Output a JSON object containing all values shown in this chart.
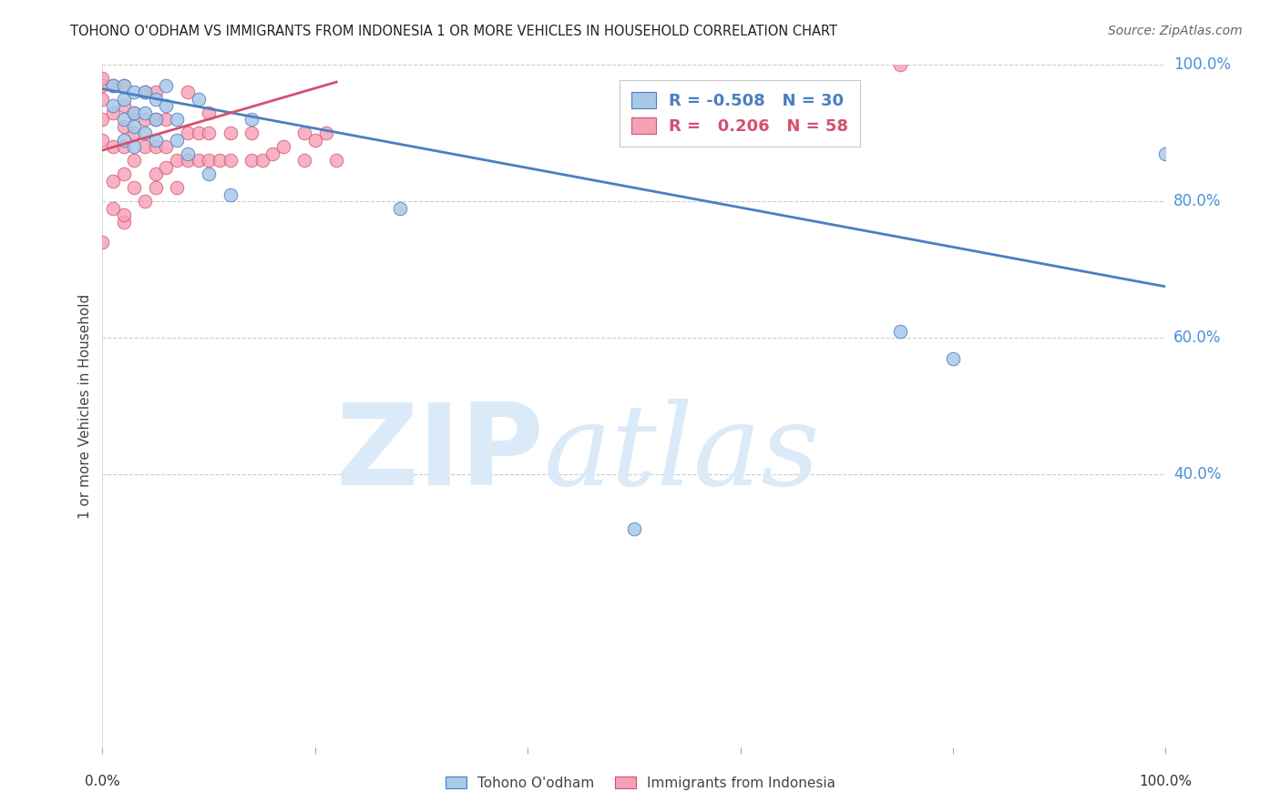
{
  "title": "TOHONO O'ODHAM VS IMMIGRANTS FROM INDONESIA 1 OR MORE VEHICLES IN HOUSEHOLD CORRELATION CHART",
  "source": "Source: ZipAtlas.com",
  "ylabel": "1 or more Vehicles in Household",
  "xlim": [
    0,
    1
  ],
  "ylim": [
    0,
    1
  ],
  "ytick_labels": [
    "100.0%",
    "80.0%",
    "60.0%",
    "40.0%"
  ],
  "ytick_values": [
    1.0,
    0.8,
    0.6,
    0.4
  ],
  "blue_R": -0.508,
  "blue_N": 30,
  "pink_R": 0.206,
  "pink_N": 58,
  "legend_label_blue": "Tohono O'odham",
  "legend_label_pink": "Immigrants from Indonesia",
  "blue_color": "#a8c8e8",
  "pink_color": "#f5a0b5",
  "blue_line_color": "#4a7fc0",
  "pink_line_color": "#d45070",
  "watermark_color": "#daeaf8",
  "blue_scatter_x": [
    0.01,
    0.01,
    0.02,
    0.02,
    0.02,
    0.02,
    0.03,
    0.03,
    0.03,
    0.03,
    0.04,
    0.04,
    0.04,
    0.05,
    0.05,
    0.05,
    0.06,
    0.06,
    0.07,
    0.07,
    0.08,
    0.09,
    0.1,
    0.12,
    0.14,
    0.28,
    0.5,
    0.75,
    0.8,
    1.0
  ],
  "blue_scatter_y": [
    0.97,
    0.94,
    0.97,
    0.95,
    0.92,
    0.89,
    0.96,
    0.93,
    0.91,
    0.88,
    0.96,
    0.93,
    0.9,
    0.95,
    0.92,
    0.89,
    0.97,
    0.94,
    0.92,
    0.89,
    0.87,
    0.95,
    0.84,
    0.81,
    0.92,
    0.79,
    0.32,
    0.61,
    0.57,
    0.87
  ],
  "pink_scatter_x": [
    0.0,
    0.0,
    0.0,
    0.0,
    0.0,
    0.01,
    0.01,
    0.01,
    0.01,
    0.02,
    0.02,
    0.02,
    0.02,
    0.02,
    0.02,
    0.03,
    0.03,
    0.03,
    0.04,
    0.04,
    0.04,
    0.05,
    0.05,
    0.05,
    0.05,
    0.06,
    0.06,
    0.07,
    0.08,
    0.08,
    0.08,
    0.09,
    0.09,
    0.1,
    0.1,
    0.1,
    0.11,
    0.12,
    0.12,
    0.14,
    0.14,
    0.15,
    0.16,
    0.17,
    0.19,
    0.19,
    0.2,
    0.21,
    0.22,
    0.0,
    0.01,
    0.02,
    0.03,
    0.04,
    0.05,
    0.06,
    0.07,
    0.75
  ],
  "pink_scatter_y": [
    0.95,
    0.92,
    0.97,
    0.98,
    0.89,
    0.97,
    0.93,
    0.88,
    0.83,
    0.97,
    0.94,
    0.91,
    0.88,
    0.84,
    0.77,
    0.93,
    0.9,
    0.86,
    0.96,
    0.92,
    0.88,
    0.96,
    0.92,
    0.88,
    0.84,
    0.92,
    0.88,
    0.86,
    0.96,
    0.9,
    0.86,
    0.9,
    0.86,
    0.93,
    0.9,
    0.86,
    0.86,
    0.9,
    0.86,
    0.9,
    0.86,
    0.86,
    0.87,
    0.88,
    0.9,
    0.86,
    0.89,
    0.9,
    0.86,
    0.74,
    0.79,
    0.78,
    0.82,
    0.8,
    0.82,
    0.85,
    0.82,
    1.0
  ],
  "blue_line_x0": 0.0,
  "blue_line_x1": 1.0,
  "blue_line_y0": 0.965,
  "blue_line_y1": 0.675,
  "pink_line_x0": 0.0,
  "pink_line_x1": 0.22,
  "pink_line_y0": 0.875,
  "pink_line_y1": 0.975
}
